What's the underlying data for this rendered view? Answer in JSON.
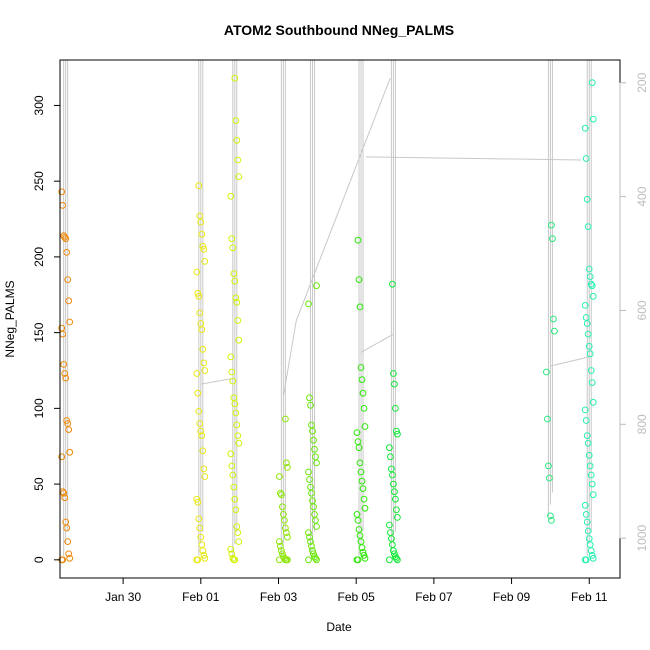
{
  "chart_data": {
    "type": "scatter",
    "title": "ATOM2 Southbound NNeg_PALMS",
    "xlabel": "Date",
    "ylabel": "NNeg_PALMS",
    "xlim": [
      "2017-01-28T09:00",
      "2017-02-11T19:00"
    ],
    "ylim": [
      -12,
      330
    ],
    "y_right_lim": [
      1070,
      160
    ],
    "x_ticks": [
      {
        "date": "2017-01-30",
        "label": "Jan 30"
      },
      {
        "date": "2017-02-01",
        "label": "Feb 01"
      },
      {
        "date": "2017-02-03",
        "label": "Feb 03"
      },
      {
        "date": "2017-02-05",
        "label": "Feb 05"
      },
      {
        "date": "2017-02-07",
        "label": "Feb 07"
      },
      {
        "date": "2017-02-09",
        "label": "Feb 09"
      },
      {
        "date": "2017-02-11",
        "label": "Feb 11"
      }
    ],
    "y_ticks": [
      0,
      50,
      100,
      150,
      200,
      250,
      300
    ],
    "y_right_ticks": [
      200,
      400,
      600,
      800,
      1000
    ],
    "y_right_color": "#bdbdbd",
    "line_color": "#c8c8c8",
    "marker": "open-circle",
    "profiles": [
      {
        "date": "2017-01-28T12:30",
        "color": "#ef8a0c",
        "values": [
          243,
          234,
          214,
          213,
          212,
          203,
          185,
          171,
          157,
          153,
          149,
          129,
          123,
          120,
          92,
          90,
          86,
          71,
          68,
          45,
          44,
          41,
          25,
          21,
          12,
          4,
          1,
          0,
          0
        ]
      },
      {
        "date": "2017-02-01T00:00",
        "color": "#e8e814",
        "values": [
          247,
          227,
          223,
          215,
          207,
          205,
          197,
          190,
          176,
          174,
          163,
          156,
          152,
          139,
          130,
          125,
          123,
          110,
          98,
          90,
          85,
          82,
          72,
          60,
          55,
          40,
          38,
          27,
          21,
          15,
          10,
          6,
          3,
          1,
          0,
          0
        ]
      },
      {
        "date": "2017-02-01T21:00",
        "color": "#d4f20c",
        "values": [
          318,
          290,
          277,
          264,
          253,
          240,
          212,
          206,
          189,
          184,
          173,
          170,
          158,
          145,
          134,
          124,
          118,
          107,
          103,
          97,
          89,
          82,
          77,
          70,
          62,
          56,
          48,
          40,
          33,
          22,
          18,
          12,
          7,
          4,
          1,
          0,
          0
        ]
      },
      {
        "date": "2017-02-03T03:00",
        "color": "#8fe60a",
        "values": [
          93,
          64,
          61,
          55,
          44,
          43,
          35,
          30,
          26,
          21,
          18,
          15,
          12,
          9,
          6,
          4,
          2,
          1,
          0,
          0,
          0,
          0
        ]
      },
      {
        "date": "2017-02-03T21:00",
        "color": "#6ae80c",
        "values": [
          181,
          169,
          107,
          102,
          89,
          85,
          79,
          73,
          68,
          64,
          58,
          53,
          48,
          44,
          39,
          35,
          30,
          26,
          22,
          18,
          15,
          12,
          9,
          6,
          4,
          2,
          1,
          0,
          0
        ]
      },
      {
        "date": "2017-02-05T03:00",
        "color": "#2ee80a",
        "values": [
          211,
          185,
          167,
          127,
          119,
          110,
          100,
          88,
          84,
          78,
          74,
          64,
          58,
          52,
          47,
          40,
          34,
          30,
          26,
          20,
          16,
          12,
          8,
          5,
          3,
          1,
          0,
          0
        ]
      },
      {
        "date": "2017-02-05T23:00",
        "color": "#13e838",
        "values": [
          182,
          123,
          116,
          100,
          85,
          83,
          74,
          68,
          60,
          56,
          50,
          45,
          40,
          33,
          28,
          23,
          18,
          14,
          10,
          6,
          4,
          2,
          1,
          0,
          0
        ]
      },
      {
        "date": "2017-02-10T00:00",
        "color": "#27e87f",
        "values": [
          221,
          212,
          159,
          151,
          124,
          93,
          62,
          54,
          29,
          26
        ]
      },
      {
        "date": "2017-02-11T00:00",
        "color": "#27f0b2",
        "values": [
          315,
          291,
          285,
          265,
          238,
          220,
          192,
          187,
          182,
          181,
          174,
          168,
          160,
          156,
          149,
          141,
          136,
          125,
          117,
          104,
          99,
          92,
          82,
          77,
          69,
          62,
          56,
          50,
          43,
          36,
          30,
          25,
          19,
          14,
          10,
          6,
          3,
          1,
          0,
          0
        ]
      }
    ],
    "track_segments": [
      {
        "from": [
          "2017-02-01T00:00",
          116
        ],
        "to": [
          "2017-02-01T21:00",
          120
        ]
      },
      {
        "from": [
          "2017-02-03T03:00",
          108
        ],
        "to": [
          "2017-02-03T11:00",
          158
        ]
      },
      {
        "from": [
          "2017-02-03T11:00",
          158
        ],
        "to": [
          "2017-02-05T21:00",
          318
        ]
      },
      {
        "from": [
          "2017-02-05T03:00",
          137
        ],
        "to": [
          "2017-02-05T23:00",
          149
        ]
      },
      {
        "from": [
          "2017-02-05T06:00",
          266
        ],
        "to": [
          "2017-02-10T19:00",
          264
        ]
      },
      {
        "from": [
          "2017-02-10T00:00",
          128
        ],
        "to": [
          "2017-02-11T00:00",
          134
        ]
      }
    ]
  }
}
